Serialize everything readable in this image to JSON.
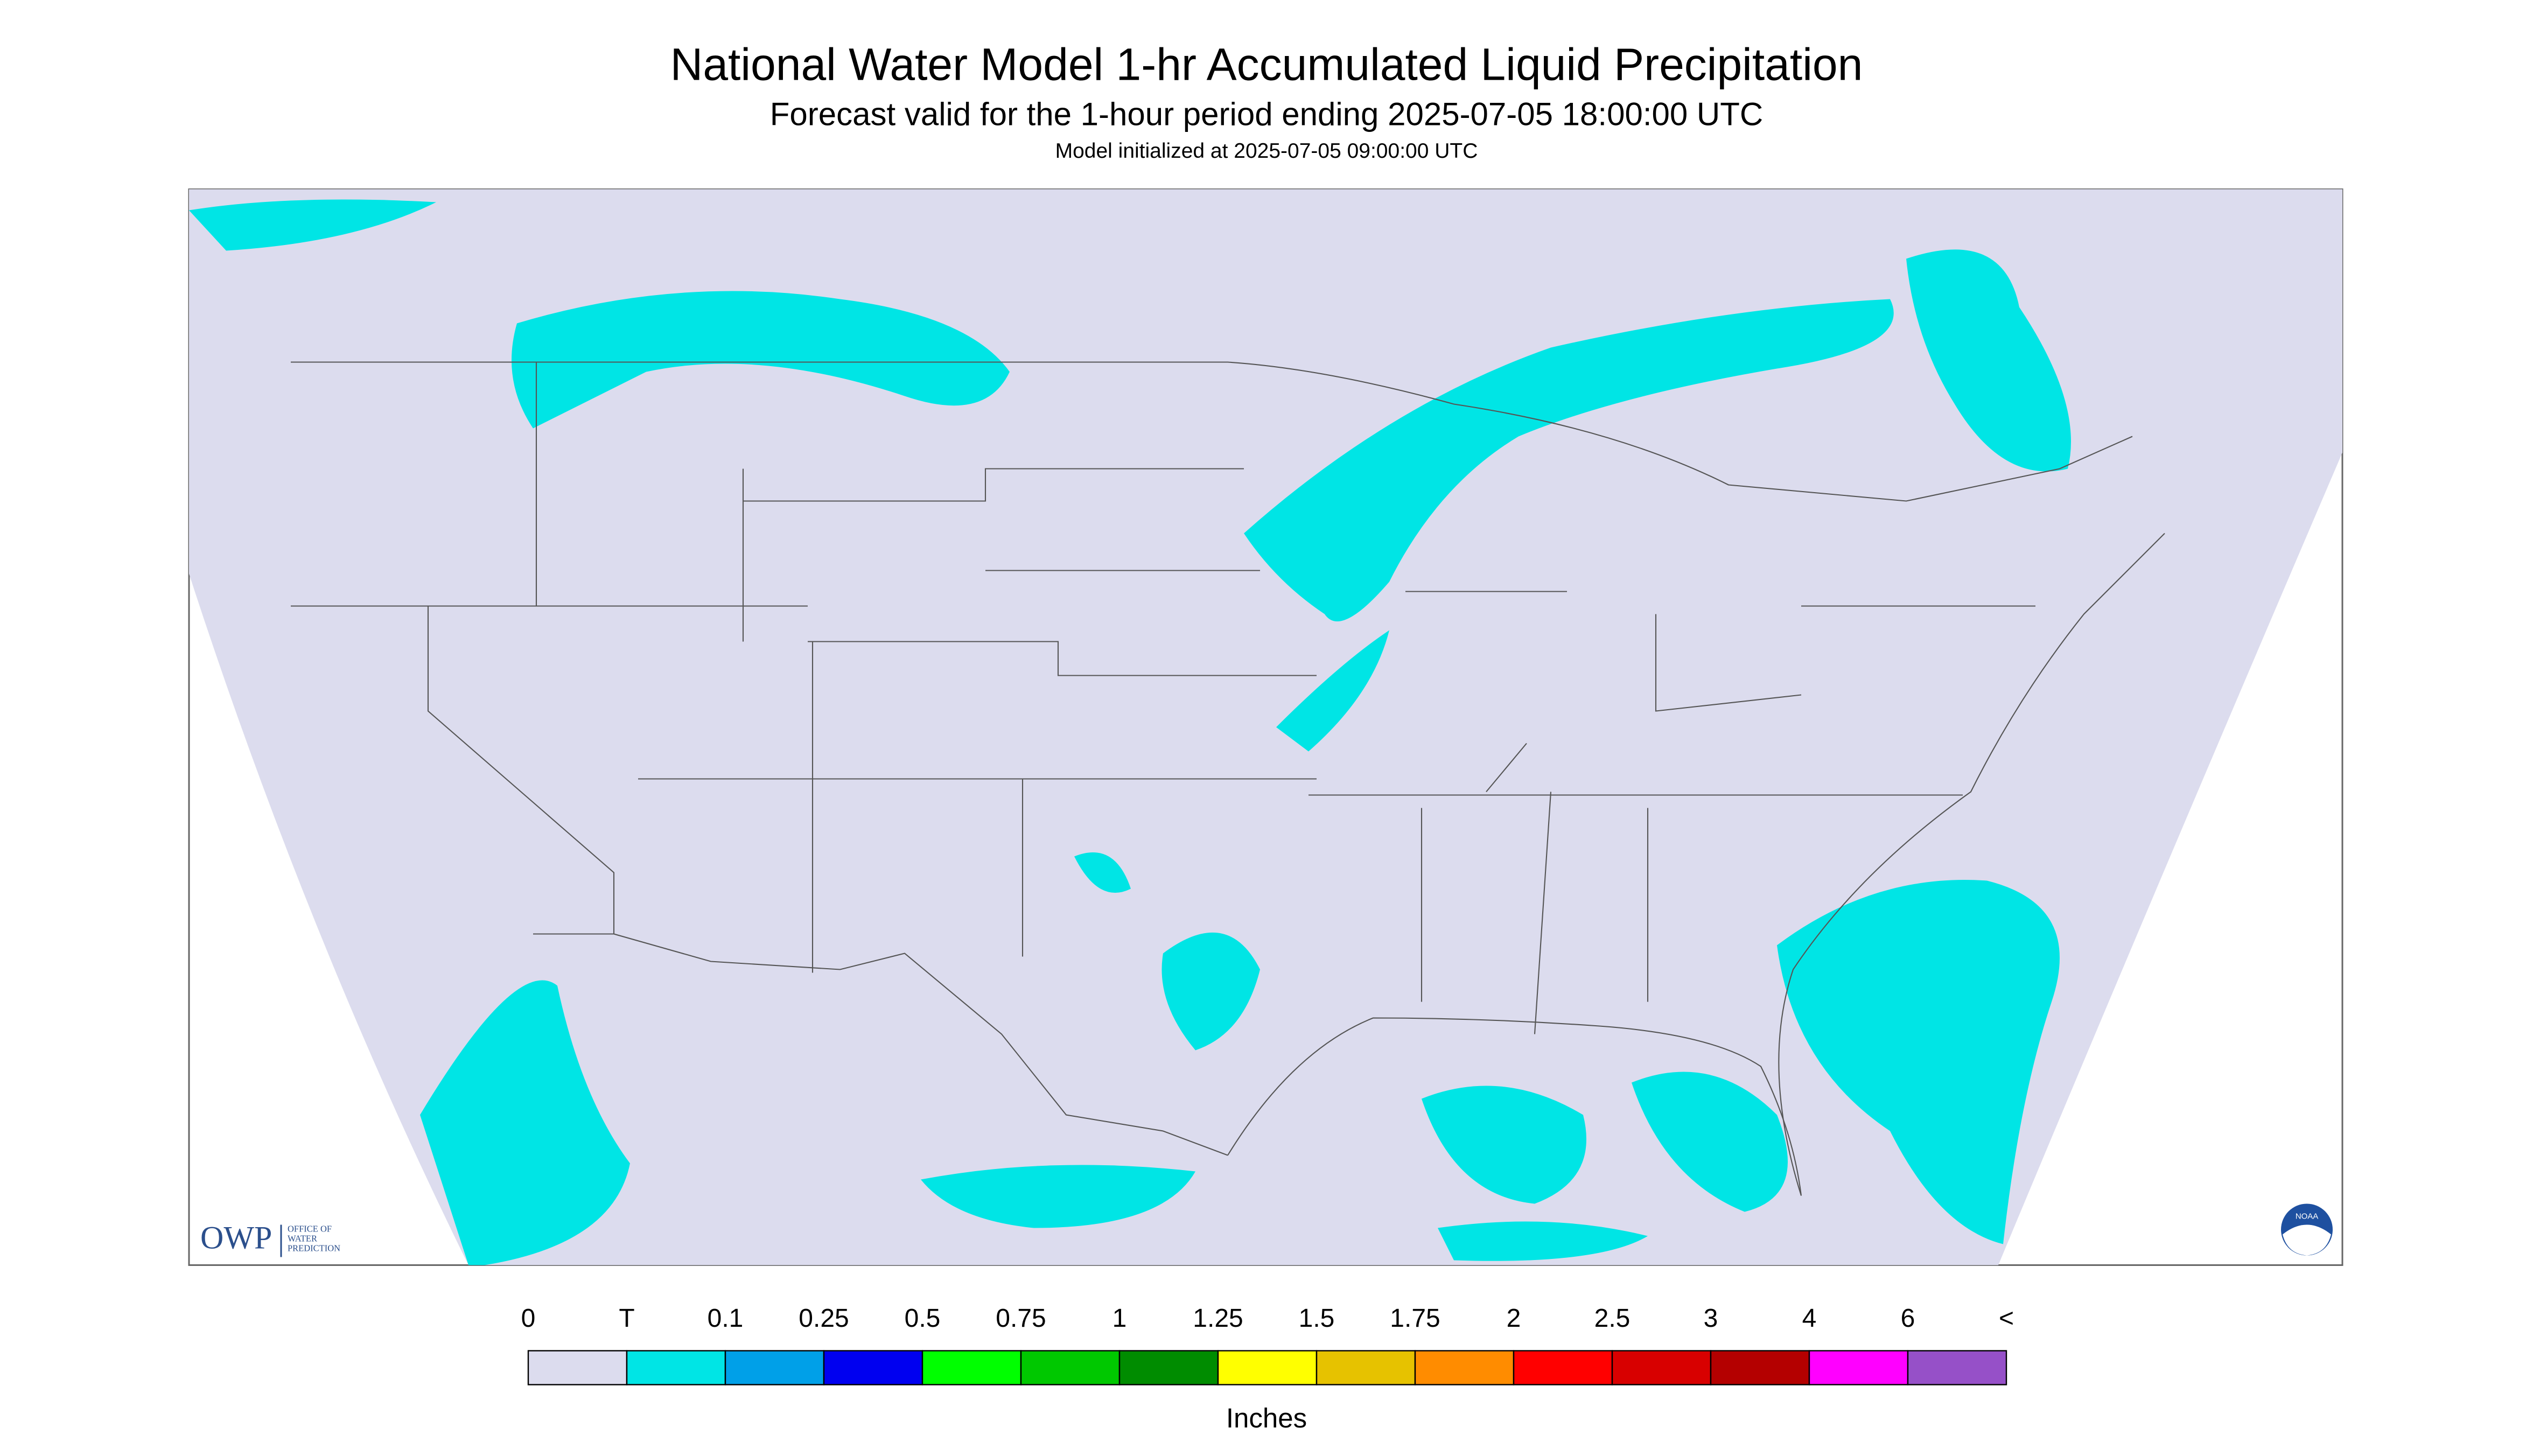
{
  "header": {
    "title": "National Water Model 1-hr Accumulated Liquid Precipitation",
    "subtitle": "Forecast valid for the 1-hour period ending 2025-07-05 18:00:00 UTC",
    "initialized": "Model initialized at 2025-07-05 09:00:00 UTC"
  },
  "legend": {
    "labels": [
      "0",
      "T",
      "0.1",
      "0.25",
      "0.5",
      "0.75",
      "1",
      "1.25",
      "1.5",
      "1.75",
      "2",
      "2.5",
      "3",
      "4",
      "6",
      "<"
    ],
    "colors": [
      "#dcdcee",
      "#00e5e5",
      "#00a0e8",
      "#0000f0",
      "#00ff00",
      "#00c800",
      "#008c00",
      "#ffff00",
      "#e6c200",
      "#ff8c00",
      "#ff0000",
      "#d80000",
      "#b40000",
      "#ff00ff",
      "#9650c8"
    ],
    "units": "Inches"
  },
  "logos": {
    "owp": "OWP",
    "owp_name": [
      "OFFICE OF",
      "WATER",
      "PREDICTION"
    ],
    "noaa": "NOAA"
  }
}
